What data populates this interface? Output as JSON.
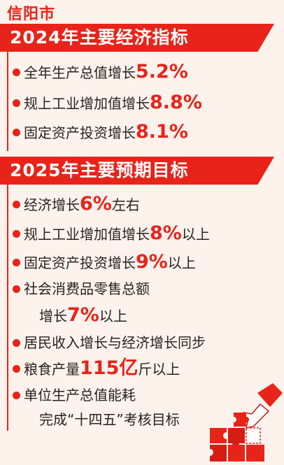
{
  "header": {
    "city": "信阳市"
  },
  "section1": {
    "title": "2024年主要经济指标",
    "items": [
      {
        "pre": "全年生产总值增长",
        "value": "5.2%",
        "post": ""
      },
      {
        "pre": "规上工业增加值增长",
        "value": "8.8%",
        "post": ""
      },
      {
        "pre": "固定资产投资增长",
        "value": "8.1%",
        "post": ""
      }
    ]
  },
  "section2": {
    "title": "2025年主要预期目标",
    "items": [
      {
        "pre": "经济增长",
        "value": "6%",
        "post": "左右"
      },
      {
        "pre": "规上工业增加值增长",
        "value": "8%",
        "post": "以上"
      },
      {
        "pre": "固定资产投资增长",
        "value": "9%",
        "post": "以上"
      },
      {
        "line1": "社会消费品零售总额",
        "pre": "增长",
        "value": "7%",
        "post": "以上"
      },
      {
        "pre": "居民收入增长与经济增长同步"
      },
      {
        "pre": "粮食产量",
        "value": "115亿",
        "post": "斤以上"
      },
      {
        "line1": "单位生产总值能耗",
        "line2": "完成“十四五”考核目标"
      }
    ]
  },
  "colors": {
    "accent": "#e8241a",
    "background": "#fdf3ec",
    "text": "#2b2220"
  },
  "decoration": {
    "icon": "hand-holding-puzzle-icon"
  }
}
